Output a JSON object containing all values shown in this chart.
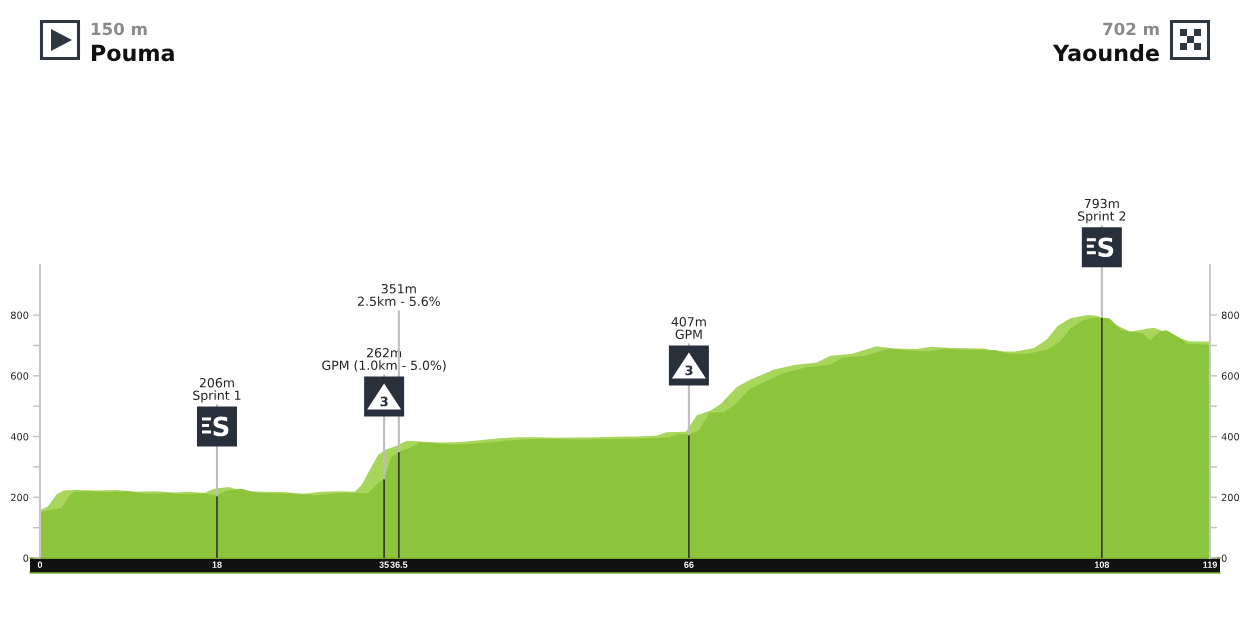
{
  "chart_data": {
    "type": "area",
    "xlim": [
      0,
      119
    ],
    "ylim": [
      0,
      965
    ],
    "xticks": [
      0,
      18,
      35,
      36.5,
      66,
      108,
      119
    ],
    "yticks": [
      0,
      {
        "value": 100,
        "label": null
      },
      200,
      {
        "value": 300,
        "label": null
      },
      400,
      {
        "value": 500,
        "label": null
      },
      600,
      {
        "value": 700,
        "label": null
      },
      800
    ],
    "y2lim": [
      0,
      965
    ],
    "y2ticks": [
      0,
      {
        "value": 100,
        "label": null
      },
      200,
      {
        "value": 300,
        "label": null
      },
      400,
      {
        "value": 500,
        "label": null
      },
      600,
      {
        "value": 700,
        "label": null
      },
      800
    ],
    "series": [
      {
        "color": "#a8d65c",
        "x": [
          0,
          0.8,
          1.7,
          2.4,
          3.7,
          5.7,
          7.7,
          9.7,
          11.7,
          13.7,
          15.2,
          16.7,
          17.7,
          19.2,
          20.7,
          22.7,
          24.7,
          26.7,
          28.7,
          30.7,
          32,
          32.7,
          33.7,
          34.4,
          35.2,
          36.3,
          37.3,
          38.7,
          40.7,
          42.7,
          44.7,
          46.7,
          48.7,
          50.7,
          52.7,
          54.7,
          56.7,
          58.7,
          60.7,
          62.7,
          63.7,
          65.7,
          66.8,
          68.2,
          69.2,
          70.9,
          72.3,
          74.6,
          76.7,
          79,
          80.4,
          82.5,
          85.1,
          86.8,
          89.2,
          90.6,
          92.7,
          96,
          97.4,
          99.2,
          101.1,
          102.4,
          103.5,
          104.8,
          106.5,
          107.5,
          110.9,
          112.6,
          113.3,
          116.8,
          119
        ],
        "values": [
          158,
          170,
          210,
          222,
          224,
          222,
          224,
          218,
          220,
          216,
          218,
          214,
          228,
          234,
          220,
          218,
          217,
          212,
          218,
          220,
          218,
          240,
          300,
          340,
          357,
          370,
          386,
          384,
          380,
          382,
          388,
          394,
          398,
          398,
          396,
          397,
          398,
          399,
          400,
          403,
          414,
          416,
          470,
          486,
          506,
          564,
          588,
          620,
          636,
          644,
          666,
          672,
          697,
          690,
          688,
          696,
          692,
          690,
          680,
          680,
          692,
          720,
          764,
          790,
          800,
          798,
          745,
          755,
          758,
          714,
          712
        ]
      },
      {
        "color": "#8cc43c",
        "x": [
          0,
          1,
          2.2,
          3,
          3.5,
          5,
          7,
          9,
          11,
          13,
          15,
          16.5,
          18,
          19,
          20.5,
          22,
          24,
          26,
          28,
          30,
          32,
          33.3,
          34,
          35,
          35.7,
          36.5,
          37.6,
          38.6,
          40,
          42,
          44,
          46,
          48,
          50,
          52,
          54,
          56,
          58,
          60,
          62,
          64,
          65,
          66,
          67,
          68.1,
          69.5,
          70.5,
          72.2,
          73.6,
          75.9,
          78,
          80.3,
          81.7,
          83.8,
          86.4,
          88.1,
          90.5,
          91.9,
          94,
          97.3,
          98.7,
          100.5,
          102.4,
          103.7,
          104.8,
          106.1,
          106.8,
          108,
          108.8,
          110,
          112.2,
          112.9,
          113.9,
          114.6,
          116,
          116.6,
          119
        ],
        "values": [
          150,
          158,
          165,
          205,
          218,
          220,
          217,
          220,
          212,
          214,
          210,
          213,
          206,
          222,
          228,
          215,
          213,
          212,
          207,
          213,
          215,
          212,
          235,
          262,
          330,
          351,
          363,
          380,
          378,
          374,
          376,
          382,
          388,
          392,
          392,
          390,
          391,
          392,
          393,
          394,
          397,
          408,
          407,
          420,
          478,
          480,
          500,
          557,
          579,
          612,
          628,
          636,
          660,
          665,
          690,
          684,
          681,
          689,
          686,
          684,
          673,
          673,
          686,
          711,
          756,
          783,
          790,
          793,
          789,
          750,
          739,
          717,
          747,
          750,
          723,
          706,
          702
        ]
      },
      {
        "type": "bar",
        "color": "#333333",
        "x": [
          18,
          35,
          36.5,
          66,
          108
        ],
        "values": [
          206,
          262,
          351,
          407,
          793
        ]
      }
    ],
    "annotations": [
      "150 m",
      "Pouma",
      "702 m",
      "Yaounde",
      {
        "text": "206m\nSprint 1",
        "x": 18,
        "y": 206
      },
      {
        "text": "262m\nGPM (1.0km - 5.0%)",
        "x": 35,
        "y": 262
      },
      {
        "text": "351m\n2.5km - 5.6%",
        "x": 36.5,
        "y": 351
      },
      {
        "text": "407m\nGPM",
        "x": 66,
        "y": 407
      },
      {
        "text": "793m\nSprint 2",
        "x": 108,
        "y": 793
      }
    ]
  }
}
